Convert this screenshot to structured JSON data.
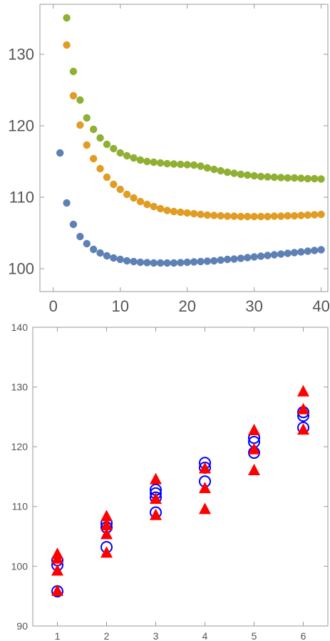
{
  "chart_data": [
    {
      "type": "scatter",
      "title": "",
      "xlabel": "",
      "ylabel": "",
      "xlim": [
        -2,
        41
      ],
      "ylim": [
        96.8,
        137
      ],
      "xticks": [
        0,
        10,
        20,
        30,
        40
      ],
      "yticks": [
        100,
        110,
        120,
        130
      ],
      "grid": false,
      "legend": "none",
      "series": [
        {
          "color": "#5e81b5",
          "x": [
            1,
            2,
            3,
            4,
            5,
            6,
            7,
            8,
            9,
            10,
            11,
            12,
            13,
            14,
            15,
            16,
            17,
            18,
            19,
            20,
            21,
            22,
            23,
            24,
            25,
            26,
            27,
            28,
            29,
            30,
            31,
            32,
            33,
            34,
            35,
            36,
            37,
            38,
            39,
            40
          ],
          "values": [
            116.2,
            109.2,
            106.2,
            104.5,
            103.5,
            102.7,
            102.2,
            101.8,
            101.5,
            101.3,
            101.1,
            101.0,
            100.9,
            100.85,
            100.8,
            100.8,
            100.8,
            100.8,
            100.85,
            100.9,
            100.95,
            101.0,
            101.05,
            101.1,
            101.2,
            101.3,
            101.35,
            101.45,
            101.55,
            101.65,
            101.75,
            101.85,
            101.95,
            102.05,
            102.15,
            102.25,
            102.35,
            102.45,
            102.55,
            102.65
          ]
        },
        {
          "color": "#e19c24",
          "x": [
            2,
            3,
            4,
            5,
            6,
            7,
            8,
            9,
            10,
            11,
            12,
            13,
            14,
            15,
            16,
            17,
            18,
            19,
            20,
            21,
            22,
            23,
            24,
            25,
            26,
            27,
            28,
            29,
            30,
            31,
            32,
            33,
            34,
            35,
            36,
            37,
            38,
            39,
            40
          ],
          "values": [
            131.3,
            124.2,
            120.1,
            117.3,
            115.4,
            114.0,
            112.8,
            111.8,
            111.1,
            110.4,
            109.9,
            109.4,
            109.0,
            108.7,
            108.4,
            108.15,
            108.0,
            107.9,
            107.8,
            107.7,
            107.6,
            107.5,
            107.45,
            107.4,
            107.35,
            107.35,
            107.3,
            107.3,
            107.3,
            107.3,
            107.3,
            107.35,
            107.35,
            107.4,
            107.4,
            107.45,
            107.5,
            107.55,
            107.6
          ]
        },
        {
          "color": "#8fb032",
          "x": [
            2,
            3,
            4,
            5,
            6,
            7,
            8,
            9,
            10,
            11,
            12,
            13,
            14,
            15,
            16,
            17,
            18,
            19,
            20,
            21,
            22,
            23,
            24,
            25,
            26,
            27,
            28,
            29,
            30,
            31,
            32,
            33,
            34,
            35,
            36,
            37,
            38,
            39,
            40
          ],
          "values": [
            135.1,
            127.6,
            123.6,
            121.1,
            119.5,
            118.3,
            117.4,
            116.8,
            116.2,
            115.8,
            115.5,
            115.2,
            115.0,
            114.9,
            114.8,
            114.7,
            114.65,
            114.6,
            114.55,
            114.5,
            114.35,
            114.1,
            113.9,
            113.7,
            113.5,
            113.35,
            113.2,
            113.1,
            113.0,
            112.9,
            112.85,
            112.8,
            112.75,
            112.7,
            112.7,
            112.65,
            112.6,
            112.6,
            112.55
          ]
        }
      ]
    },
    {
      "type": "scatter",
      "title": "",
      "xlabel": "",
      "ylabel": "",
      "xlim": [
        0.5,
        6.5
      ],
      "ylim": [
        90,
        140
      ],
      "xticks": [
        1,
        2,
        3,
        4,
        5,
        6
      ],
      "yticks": [
        90,
        100,
        110,
        120,
        130,
        140
      ],
      "grid": false,
      "legend": "none",
      "series": [
        {
          "marker": "open-circle",
          "color": "#0000ff",
          "points": [
            [
              1,
              95.8
            ],
            [
              1,
              100.2
            ],
            [
              1,
              101.0
            ],
            [
              2,
              103.2
            ],
            [
              2,
              106.5
            ],
            [
              2,
              107.2
            ],
            [
              3,
              109.0
            ],
            [
              3,
              111.5
            ],
            [
              3,
              112.2
            ],
            [
              3,
              112.8
            ],
            [
              4,
              114.2
            ],
            [
              4,
              116.5
            ],
            [
              4,
              117.3
            ],
            [
              5,
              119.0
            ],
            [
              5,
              120.8
            ],
            [
              5,
              121.5
            ],
            [
              6,
              123.2
            ],
            [
              6,
              125.2
            ],
            [
              6,
              125.8
            ]
          ]
        },
        {
          "marker": "filled-triangle",
          "color": "#ff0000",
          "points": [
            [
              1,
              95.8
            ],
            [
              1,
              99.2
            ],
            [
              1,
              101.2
            ],
            [
              1,
              102.0
            ],
            [
              2,
              102.2
            ],
            [
              2,
              105.3
            ],
            [
              2,
              106.8
            ],
            [
              2,
              108.3
            ],
            [
              3,
              108.5
            ],
            [
              3,
              111.2
            ],
            [
              3,
              114.5
            ],
            [
              4,
              109.5
            ],
            [
              4,
              113.0
            ],
            [
              4,
              116.3
            ],
            [
              5,
              116.0
            ],
            [
              5,
              119.5
            ],
            [
              5,
              122.7
            ],
            [
              6,
              122.8
            ],
            [
              6,
              126.2
            ],
            [
              6,
              129.2
            ]
          ]
        }
      ]
    }
  ]
}
